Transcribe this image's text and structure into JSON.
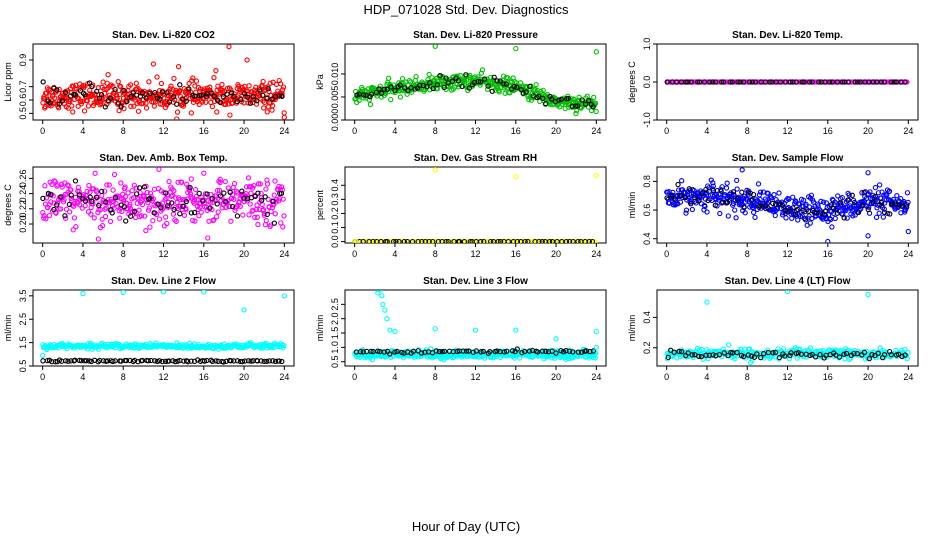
{
  "figure": {
    "title": "HDP_071028  Std. Dev. Diagnostics",
    "xlabel": "Hour of Day (UTC)"
  },
  "chart_data": [
    {
      "type": "scatter",
      "title": "Stan. Dev. Li-820 CO2",
      "ylabel": "Licor ppm",
      "xlim": [
        0,
        24
      ],
      "ylim": [
        0.45,
        1.02
      ],
      "xticks": [
        0,
        4,
        8,
        12,
        16,
        20,
        24
      ],
      "yticks": [
        0.5,
        0.6,
        0.7,
        0.9
      ],
      "yticklabels": [
        "0.5",
        "0.6",
        "0.7",
        "0.9"
      ],
      "color": "#ff0000",
      "series": [
        {
          "color": "#ff0000",
          "pattern": "band",
          "n": 420,
          "center": 0.63,
          "spread": 0.09,
          "trend": []
        },
        {
          "color": "#000000",
          "pattern": "band",
          "n": 75,
          "center": 0.63,
          "spread": 0.08,
          "trend": []
        }
      ],
      "outliers": [
        [
          18.5,
          1.0
        ],
        [
          17.2,
          0.82
        ],
        [
          20.3,
          0.9
        ],
        [
          24.0,
          0.47
        ],
        [
          13.5,
          0.85
        ],
        [
          11.0,
          0.87
        ],
        [
          6.5,
          0.79
        ],
        [
          0.2,
          0.54
        ]
      ]
    },
    {
      "type": "scatter",
      "title": "Stan. Dev. Li-820 Pressure",
      "ylabel": "kPa",
      "xlim": [
        0,
        24
      ],
      "ylim": [
        0.0,
        0.0165
      ],
      "xticks": [
        0,
        4,
        8,
        12,
        16,
        20,
        24
      ],
      "yticks": [
        0.0,
        0.005,
        0.01
      ],
      "yticklabels": [
        "0.000",
        "0.005",
        "0.010"
      ],
      "color": "#00c000",
      "series": [
        {
          "color": "#00c000",
          "pattern": "band",
          "n": 420,
          "center": 0.0075,
          "spread": 0.0015,
          "trend": [
            [
              0,
              0.005
            ],
            [
              4,
              0.0068
            ],
            [
              8,
              0.008
            ],
            [
              12,
              0.0085
            ],
            [
              16,
              0.0072
            ],
            [
              20,
              0.004
            ],
            [
              24,
              0.0035
            ]
          ]
        },
        {
          "color": "#000000",
          "pattern": "band",
          "n": 75,
          "center": 0.0075,
          "spread": 0.0012,
          "trend": [
            [
              0,
              0.005
            ],
            [
              4,
              0.0068
            ],
            [
              8,
              0.008
            ],
            [
              12,
              0.0085
            ],
            [
              16,
              0.0072
            ],
            [
              20,
              0.004
            ],
            [
              24,
              0.0035
            ]
          ]
        }
      ],
      "outliers": [
        [
          8,
          0.016
        ],
        [
          16,
          0.0155
        ],
        [
          24,
          0.0148
        ]
      ]
    },
    {
      "type": "scatter",
      "title": "Stan. Dev. Li-820 Temp.",
      "ylabel": "degrees C",
      "xlim": [
        0,
        24
      ],
      "ylim": [
        -1.0,
        1.0
      ],
      "xticks": [
        0,
        4,
        8,
        12,
        16,
        20,
        24
      ],
      "yticks": [
        -1.0,
        0.0,
        1.0
      ],
      "yticklabels": [
        "-1.0",
        "0.0",
        "1.0"
      ],
      "color": "#ff00ff",
      "series": [
        {
          "color": "#ff00ff",
          "pattern": "flat",
          "n": 160,
          "center": 0.0,
          "spread": 0.0,
          "trend": []
        },
        {
          "color": "#000000",
          "pattern": "flat",
          "n": 60,
          "center": 0.0,
          "spread": 0.0,
          "trend": []
        }
      ],
      "outliers": []
    },
    {
      "type": "scatter",
      "title": "Stan. Dev. Amb. Box Temp.",
      "ylabel": "degrees C",
      "xlim": [
        0,
        24
      ],
      "ylim": [
        0.175,
        0.275
      ],
      "xticks": [
        0,
        4,
        8,
        12,
        16,
        20,
        24
      ],
      "yticks": [
        0.2,
        0.22,
        0.24,
        0.26
      ],
      "yticklabels": [
        "0.20",
        "0.22",
        "0.24",
        "0.26"
      ],
      "color": "#ff00ff",
      "series": [
        {
          "color": "#ff00ff",
          "pattern": "band",
          "n": 400,
          "center": 0.23,
          "spread": 0.028,
          "trend": []
        },
        {
          "color": "#000000",
          "pattern": "band",
          "n": 70,
          "center": 0.23,
          "spread": 0.022,
          "trend": []
        }
      ],
      "outliers": []
    },
    {
      "type": "scatter",
      "title": "Stan. Dev. Gas Stream RH",
      "ylabel": "percent",
      "xlim": [
        0,
        24
      ],
      "ylim": [
        -0.01,
        0.53
      ],
      "xticks": [
        0,
        4,
        8,
        12,
        16,
        20,
        24
      ],
      "yticks": [
        0.0,
        0.1,
        0.2,
        0.3,
        0.4
      ],
      "yticklabels": [
        "0.0",
        "0.1",
        "0.2",
        "0.3",
        "0.4"
      ],
      "color": "#ffff00",
      "series": [
        {
          "color": "#ffff00",
          "pattern": "flat",
          "n": 150,
          "center": 0.0,
          "spread": 0.0,
          "trend": []
        },
        {
          "color": "#000000",
          "pattern": "flat",
          "n": 60,
          "center": 0.0,
          "spread": 0.0,
          "trend": []
        }
      ],
      "outliers": [
        [
          8,
          0.51
        ],
        [
          16,
          0.46
        ],
        [
          24,
          0.47
        ],
        [
          0.1,
          0.0
        ]
      ]
    },
    {
      "type": "scatter",
      "title": "Stan. Dev. Sample Flow",
      "ylabel": "ml/min",
      "xlim": [
        0,
        24
      ],
      "ylim": [
        0.37,
        0.9
      ],
      "xticks": [
        0,
        4,
        8,
        12,
        16,
        20,
        24
      ],
      "yticks": [
        0.4,
        0.6,
        0.8
      ],
      "yticklabels": [
        "0.4",
        "0.6",
        "0.8"
      ],
      "color": "#0000ff",
      "series": [
        {
          "color": "#0000ff",
          "pattern": "band",
          "n": 420,
          "center": 0.66,
          "spread": 0.085,
          "trend": [
            [
              0,
              0.68
            ],
            [
              4,
              0.7
            ],
            [
              8,
              0.66
            ],
            [
              12,
              0.6
            ],
            [
              16,
              0.6
            ],
            [
              20,
              0.66
            ],
            [
              24,
              0.62
            ]
          ]
        },
        {
          "color": "#000000",
          "pattern": "band",
          "n": 70,
          "center": 0.66,
          "spread": 0.06,
          "trend": [
            [
              0,
              0.68
            ],
            [
              4,
              0.7
            ],
            [
              8,
              0.66
            ],
            [
              12,
              0.6
            ],
            [
              16,
              0.6
            ],
            [
              20,
              0.66
            ],
            [
              24,
              0.62
            ]
          ]
        }
      ],
      "outliers": [
        [
          7.5,
          0.88
        ],
        [
          16,
          0.38
        ],
        [
          24,
          0.45
        ],
        [
          20.0,
          0.86
        ],
        [
          20.0,
          0.42
        ]
      ]
    },
    {
      "type": "scatter",
      "title": "Stan. Dev. Line 2 Flow",
      "ylabel": "ml/min",
      "xlim": [
        0,
        24
      ],
      "ylim": [
        0.5,
        3.75
      ],
      "xticks": [
        0,
        4,
        8,
        12,
        16,
        20,
        24
      ],
      "yticks": [
        0.5,
        1.5,
        2.5,
        3.5
      ],
      "yticklabels": [
        "0.5",
        "1.5",
        "2.5",
        "3.5"
      ],
      "color": "#00ffff",
      "series": [
        {
          "color": "#00ffff",
          "pattern": "band",
          "n": 300,
          "center": 1.35,
          "spread": 0.1,
          "trend": []
        },
        {
          "color": "#000000",
          "pattern": "band",
          "n": 90,
          "center": 0.72,
          "spread": 0.04,
          "trend": []
        }
      ],
      "outliers": [
        [
          4,
          3.6
        ],
        [
          8,
          3.65
        ],
        [
          12,
          3.67
        ],
        [
          16,
          3.67
        ],
        [
          20,
          2.9
        ],
        [
          24,
          3.5
        ],
        [
          0,
          0.95
        ]
      ]
    },
    {
      "type": "scatter",
      "title": "Stan. Dev. Line 3 Flow",
      "ylabel": "ml/min",
      "xlim": [
        0,
        24
      ],
      "ylim": [
        0.35,
        3.0
      ],
      "xticks": [
        0,
        4,
        8,
        12,
        16,
        20,
        24
      ],
      "yticks": [
        0.5,
        1.0,
        1.5,
        2.0,
        2.5
      ],
      "yticklabels": [
        "0.5",
        "1.0",
        "1.5",
        "2.0",
        "2.5"
      ],
      "color": "#00ffff",
      "series": [
        {
          "color": "#00ffff",
          "pattern": "band",
          "n": 400,
          "center": 0.75,
          "spread": 0.12,
          "trend": []
        },
        {
          "color": "#000000",
          "pattern": "band",
          "n": 70,
          "center": 0.85,
          "spread": 0.05,
          "trend": []
        }
      ],
      "outliers": [
        [
          2.3,
          2.9
        ],
        [
          2.5,
          3.0
        ],
        [
          2.7,
          2.8
        ],
        [
          2.8,
          2.5
        ],
        [
          3.0,
          2.3
        ],
        [
          3.2,
          2.0
        ],
        [
          3.5,
          1.6
        ],
        [
          4,
          1.55
        ],
        [
          8,
          1.65
        ],
        [
          12,
          1.6
        ],
        [
          16,
          1.6
        ],
        [
          20,
          1.3
        ],
        [
          24,
          1.55
        ],
        [
          24,
          1.0
        ]
      ]
    },
    {
      "type": "scatter",
      "title": "Stan. Dev. Line 4 (LT) Flow",
      "ylabel": "ml/min",
      "xlim": [
        0,
        24
      ],
      "ylim": [
        0.08,
        0.58
      ],
      "xticks": [
        0,
        4,
        8,
        12,
        16,
        20,
        24
      ],
      "yticks": [
        0.2,
        0.4
      ],
      "yticklabels": [
        "0.2",
        "0.4"
      ],
      "color": "#00ffff",
      "series": [
        {
          "color": "#00ffff",
          "pattern": "band",
          "n": 340,
          "center": 0.16,
          "spread": 0.03,
          "trend": []
        },
        {
          "color": "#000000",
          "pattern": "band",
          "n": 70,
          "center": 0.155,
          "spread": 0.02,
          "trend": []
        }
      ],
      "outliers": [
        [
          4,
          0.5
        ],
        [
          12,
          0.57
        ],
        [
          20,
          0.55
        ]
      ]
    }
  ]
}
